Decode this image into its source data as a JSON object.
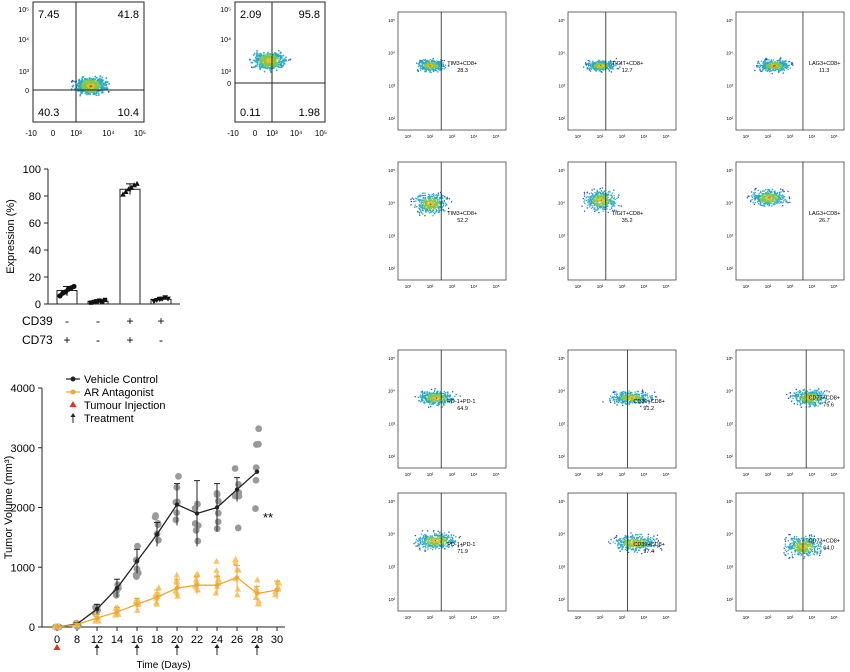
{
  "quadrant_plots": [
    {
      "q": [
        "7.45",
        "41.8",
        "40.3",
        "10.4"
      ],
      "yticks": [
        "10⁵",
        "10⁴",
        "10³",
        "0"
      ],
      "xticks": [
        "-10",
        "0",
        "10³",
        "10⁴",
        "10⁵"
      ]
    },
    {
      "q": [
        "2.09",
        "95.8",
        "0.11",
        "1.98"
      ],
      "yticks": [
        "10⁵",
        "10⁴",
        "10³",
        "0"
      ],
      "xticks": [
        "-10",
        "0",
        "10³",
        "10⁴",
        "10⁵"
      ]
    }
  ],
  "facs_panels": [
    {
      "label": "TIM3+CD8+",
      "value": "28.3"
    },
    {
      "label": "TIGIT+CD8+",
      "value": "12.7"
    },
    {
      "label": "LAG3+CD8+",
      "value": "11.3"
    },
    {
      "label": "TIM3+CD8+",
      "value": "52.2"
    },
    {
      "label": "TIGIT+CD8+",
      "value": "35.2"
    },
    {
      "label": "LAG3+CD8+",
      "value": "26.7"
    },
    {
      "label": "PD-1+PD-1",
      "value": "64.9"
    },
    {
      "label": "CD39+CD8+",
      "value": "91.2"
    },
    {
      "label": "CD73+CD8+",
      "value": "75.6"
    },
    {
      "label": "PD-1+PD-1",
      "value": "71.9"
    },
    {
      "label": "CD39+CD8+",
      "value": "97.4"
    },
    {
      "label": "CD73+CD8+",
      "value": "64.0"
    }
  ],
  "chart_data": [
    {
      "type": "bar",
      "ylabel": "Expression (%)",
      "ylim": [
        0,
        100
      ],
      "yticks": [
        "0",
        "20",
        "40",
        "60",
        "80",
        "100"
      ],
      "row_labels": [
        "CD39",
        "CD73"
      ],
      "groups": [
        {
          "cd39": "-",
          "cd73": "+",
          "mean": 10,
          "points": [
            6,
            8,
            9,
            11,
            12,
            13
          ]
        },
        {
          "cd39": "-",
          "cd73": "-",
          "mean": 2,
          "points": [
            1,
            1.5,
            2,
            2.5,
            2,
            3
          ]
        },
        {
          "cd39": "+",
          "cd73": "+",
          "mean": 85,
          "points": [
            81,
            83,
            85,
            86,
            88,
            89
          ]
        },
        {
          "cd39": "+",
          "cd73": "-",
          "mean": 3.5,
          "points": [
            2,
            3,
            3.5,
            4,
            5,
            4
          ]
        }
      ]
    },
    {
      "type": "line",
      "xlabel": "Time (Days)",
      "ylabel": "Tumor Volume (mm³)",
      "ylim": [
        0,
        4000
      ],
      "yticks": [
        "0",
        "1000",
        "2000",
        "3000",
        "4000"
      ],
      "x": [
        0,
        8,
        12,
        14,
        16,
        18,
        20,
        22,
        24,
        26,
        28,
        30
      ],
      "xticks": [
        "0",
        "8",
        "12",
        "14",
        "16",
        "18",
        "20",
        "22",
        "24",
        "26",
        "28",
        "30"
      ],
      "legend": [
        "Vehicle Control",
        "AR Antagonist",
        "Tumour Injection",
        "Treatment"
      ],
      "colors": {
        "vehicle": "#222222",
        "vehicle_pts": "#9a9a9a",
        "ar": "#f0a830",
        "ar_pts": "#f5c66a",
        "injection": "#e03020"
      },
      "series": [
        {
          "name": "Vehicle Control",
          "x": [
            0,
            8,
            12,
            14,
            16,
            18,
            20,
            22,
            24,
            26,
            28
          ],
          "values": [
            0,
            50,
            300,
            650,
            1100,
            1550,
            2050,
            1900,
            2000,
            2300,
            2600
          ],
          "err": [
            0,
            20,
            80,
            150,
            200,
            200,
            350,
            550,
            400,
            200,
            0
          ]
        },
        {
          "name": "AR Antagonist",
          "x": [
            0,
            8,
            12,
            14,
            16,
            18,
            20,
            22,
            24,
            26,
            28,
            30
          ],
          "values": [
            0,
            40,
            150,
            250,
            380,
            500,
            650,
            700,
            700,
            830,
            560,
            620
          ],
          "err": [
            0,
            20,
            60,
            80,
            100,
            120,
            150,
            150,
            150,
            200,
            120,
            150
          ]
        }
      ],
      "injection_days": [
        0
      ],
      "treatment_days": [
        12,
        16,
        20,
        24,
        28
      ],
      "significance": "**"
    }
  ]
}
